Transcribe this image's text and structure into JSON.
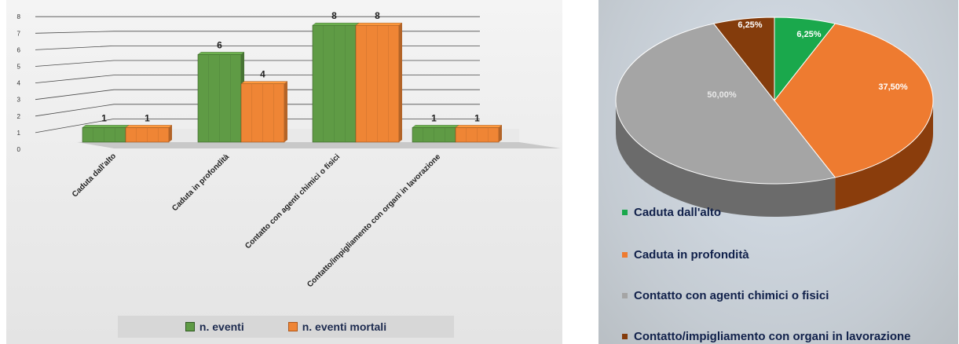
{
  "bar_chart": {
    "title": "",
    "legend": [
      {
        "label": "n. eventi",
        "color": "#5f9b45"
      },
      {
        "label": "n. eventi mortali",
        "color": "#ef8535"
      }
    ]
  },
  "pie_chart": {
    "legend": [
      {
        "label": "Caduta dall'alto",
        "color": "#1aa84c"
      },
      {
        "label": "Caduta in profondità",
        "color": "#ee7b30"
      },
      {
        "label": "Contatto con agenti chimici o fisici",
        "color": "#a5a5a5"
      },
      {
        "label": "Contatto/impigliamento con organi in lavorazione",
        "color": "#843c0c"
      }
    ]
  },
  "chart_data": [
    {
      "type": "bar",
      "categories": [
        "Caduta dall'alto",
        "Caduta in profondità",
        "Contatto con agenti chimici o fisici",
        "Contatto/impigliamento con organi in lavorazione"
      ],
      "series": [
        {
          "name": "n. eventi",
          "values": [
            1,
            6,
            8,
            1
          ],
          "color": "#5f9b45"
        },
        {
          "name": "n. eventi mortali",
          "values": [
            1,
            4,
            8,
            1
          ],
          "color": "#ef8535"
        }
      ],
      "yticks": [
        "0",
        "1",
        "2",
        "3",
        "4",
        "5",
        "6",
        "7",
        "8"
      ],
      "ylim": [
        0,
        8
      ],
      "grid": true,
      "legend_position": "bottom"
    },
    {
      "type": "pie",
      "labels": [
        "Caduta dall'alto",
        "Caduta in profondità",
        "Contatto con agenti chimici o fisici",
        "Contatto/impigliamento con organi in lavorazione"
      ],
      "values": [
        6.25,
        37.5,
        50.0,
        6.25
      ],
      "value_labels": [
        "6,25%",
        "37,50%",
        "50,00%",
        "6,25%"
      ],
      "colors": [
        "#1aa84c",
        "#ee7b30",
        "#a5a5a5",
        "#843c0c"
      ],
      "side_colors": [
        "#0f6e31",
        "#8a3d0c",
        "#6b6b6b",
        "#5a2707"
      ],
      "legend_position": "bottom"
    }
  ]
}
